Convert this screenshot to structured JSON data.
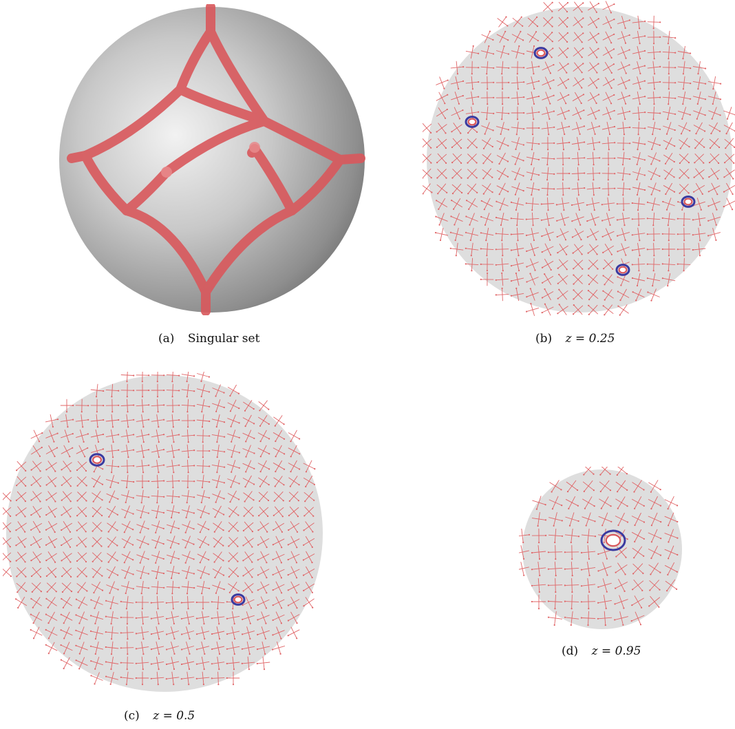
{
  "figure": {
    "panels": [
      {
        "tag": "(a)",
        "label": "Singular set",
        "math": ""
      },
      {
        "tag": "(b)",
        "label": "",
        "math": "z = 0.25"
      },
      {
        "tag": "(c)",
        "label": "",
        "math": "z = 0.5"
      },
      {
        "tag": "(d)",
        "label": "",
        "math": "z = 0.95"
      }
    ]
  },
  "colors": {
    "disk_fill": "#dedede",
    "cross_field": "#e06466",
    "singular_tube": "#d9585c",
    "singularity_ring": "#3a3aa0",
    "sphere_shading": "#9a9a9a"
  }
}
